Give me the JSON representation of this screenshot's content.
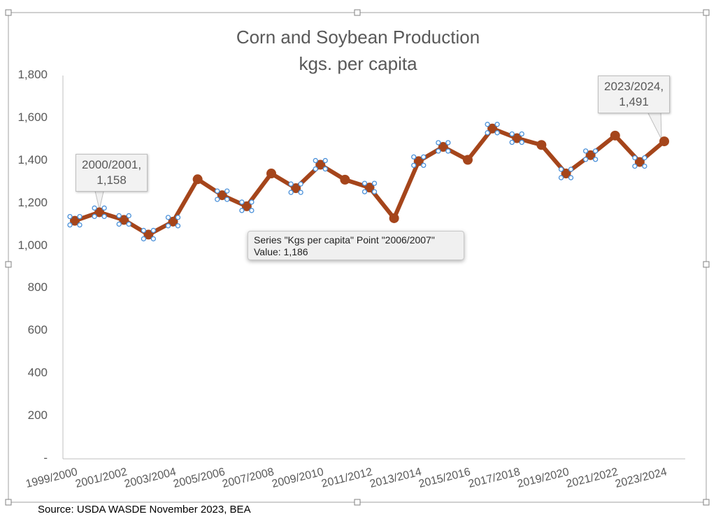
{
  "chart_data": {
    "type": "line",
    "title": "Corn and Soybean Production",
    "subtitle": "kgs. per capita",
    "series": [
      {
        "name": "Kgs per capita",
        "color": "#a5451b",
        "values": [
          1118,
          1158,
          1122,
          1053,
          1114,
          1313,
          1238,
          1186,
          1340,
          1271,
          1381,
          1311,
          1274,
          1130,
          1398,
          1465,
          1404,
          1551,
          1506,
          1474,
          1340,
          1426,
          1518,
          1394,
          1491
        ]
      }
    ],
    "x": [
      "1999/2000",
      "2000/2001",
      "2001/2002",
      "2002/2003",
      "2003/2004",
      "2004/2005",
      "2005/2006",
      "2006/2007",
      "2007/2008",
      "2008/2009",
      "2009/2010",
      "2010/2011",
      "2011/2012",
      "2012/2013",
      "2013/2014",
      "2014/2015",
      "2015/2016",
      "2016/2017",
      "2017/2018",
      "2018/2019",
      "2019/2020",
      "2020/2021",
      "2021/2022",
      "2022/2023",
      "2023/2024"
    ],
    "xtick_labels": [
      "1999/2000",
      "2001/2002",
      "2003/2004",
      "2005/2006",
      "2007/2008",
      "2009/2010",
      "2011/2012",
      "2013/2014",
      "2015/2016",
      "2017/2018",
      "2019/2020",
      "2021/2022",
      "2023/2024"
    ],
    "ytick_labels": [
      "-",
      "200",
      "400",
      "600",
      "800",
      "1,000",
      "1,200",
      "1,400",
      "1,600",
      "1,800"
    ],
    "ylim": [
      0,
      1800
    ],
    "grid": false,
    "legend": "none",
    "annotations": [
      {
        "line1": "2000/2001,",
        "line2": "1,158"
      },
      {
        "line1": "2023/2024,",
        "line2": "1,491"
      }
    ]
  },
  "tooltip": {
    "line1": "Series \"Kgs per capita\" Point \"2006/2007\"",
    "line2": "Value:  1,186"
  },
  "source": "Source: USDA WASDE November 2023, BEA"
}
